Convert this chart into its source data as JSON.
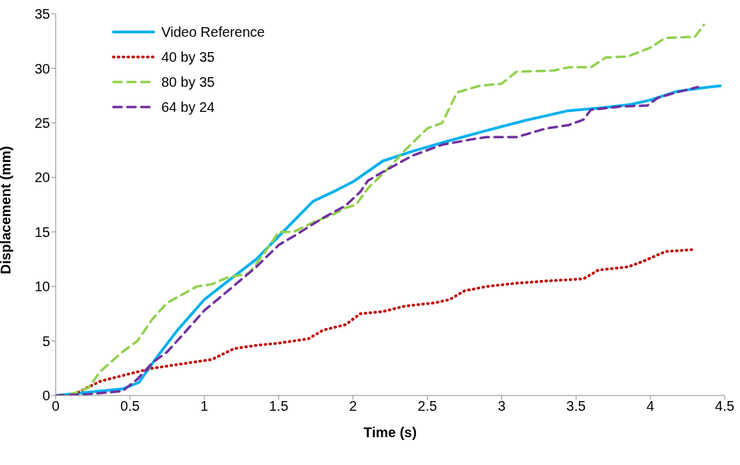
{
  "chart_data": {
    "type": "line",
    "xlabel": "Time (s)",
    "ylabel": "Displacement (mm)",
    "xlim": [
      0,
      4.5
    ],
    "xticks": [
      0,
      0.5,
      1,
      1.5,
      2,
      2.5,
      3,
      3.5,
      4,
      4.5
    ],
    "ylim": [
      0,
      35
    ],
    "yticks": [
      0,
      5,
      10,
      15,
      20,
      25,
      30,
      35
    ],
    "grid": false,
    "legend": "top left",
    "marker": "none",
    "series": [
      {
        "name": "Video Reference",
        "color": "#00b0f0",
        "line_style": "solid",
        "x": [
          0,
          0.15,
          0.45,
          0.56,
          0.68,
          0.82,
          1.0,
          1.15,
          1.35,
          1.55,
          1.73,
          1.87,
          2.0,
          2.2,
          2.4,
          2.63,
          2.87,
          3.15,
          3.44,
          3.68,
          3.87,
          4.0,
          4.18,
          4.34,
          4.47
        ],
        "values": [
          0,
          0.2,
          0.6,
          1.2,
          3.5,
          6,
          8.8,
          10.4,
          12.5,
          15.3,
          17.8,
          18.7,
          19.6,
          21.5,
          22.4,
          23.3,
          24.2,
          25.2,
          26.1,
          26.4,
          26.7,
          27.1,
          27.9,
          28.2,
          28.4
        ]
      },
      {
        "name": "40 by 35",
        "color": "#c00000",
        "line_style": "dotted",
        "x": [
          0.15,
          0.3,
          0.5,
          0.65,
          0.9,
          1.05,
          1.2,
          1.35,
          1.5,
          1.7,
          1.8,
          1.95,
          2.05,
          2.2,
          2.35,
          2.55,
          2.65,
          2.75,
          2.9,
          3.1,
          3.3,
          3.55,
          3.65,
          3.85,
          3.95,
          4.1,
          4.3
        ],
        "values": [
          0.3,
          1.3,
          2.0,
          2.5,
          3.0,
          3.3,
          4.3,
          4.6,
          4.8,
          5.2,
          6.0,
          6.5,
          7.5,
          7.7,
          8.2,
          8.5,
          8.8,
          9.6,
          10.0,
          10.3,
          10.5,
          10.7,
          11.5,
          11.8,
          12.3,
          13.2,
          13.4
        ]
      },
      {
        "name": "80 by 35",
        "color": "#92d050",
        "line_style": "dashed",
        "x": [
          0,
          0.1,
          0.22,
          0.3,
          0.45,
          0.55,
          0.65,
          0.75,
          0.95,
          1.05,
          1.15,
          1.3,
          1.4,
          1.5,
          1.6,
          1.75,
          1.85,
          1.95,
          2.02,
          2.1,
          2.25,
          2.35,
          2.5,
          2.6,
          2.7,
          2.85,
          3.0,
          3.1,
          3.35,
          3.45,
          3.6,
          3.7,
          3.85,
          4.0,
          4.1,
          4.3,
          4.36
        ],
        "values": [
          0,
          0.1,
          0.7,
          2.2,
          4,
          5,
          7,
          8.5,
          10,
          10.2,
          10.8,
          11.2,
          13,
          15,
          15,
          16,
          16.5,
          17.2,
          17.5,
          19,
          21,
          22.5,
          24.5,
          25,
          27.8,
          28.4,
          28.6,
          29.7,
          29.8,
          30.1,
          30.1,
          31,
          31.1,
          31.9,
          32.8,
          32.9,
          34
        ]
      },
      {
        "name": "64 by 24",
        "color": "#7030a0",
        "line_style": "dashed",
        "x": [
          0,
          0.2,
          0.45,
          0.55,
          0.65,
          0.75,
          0.85,
          1.0,
          1.15,
          1.35,
          1.5,
          1.6,
          1.8,
          1.95,
          2.05,
          2.1,
          2.2,
          2.4,
          2.6,
          2.8,
          2.9,
          3.1,
          3.3,
          3.45,
          3.55,
          3.6,
          3.8,
          3.98,
          4.05,
          4.15,
          4.32
        ],
        "values": [
          0,
          0.1,
          0.4,
          1.5,
          3,
          4,
          5.5,
          7.8,
          9.5,
          11.8,
          13.8,
          14.6,
          16.3,
          17.4,
          18.7,
          19.7,
          20.5,
          22,
          23,
          23.5,
          23.7,
          23.7,
          24.5,
          24.8,
          25.3,
          26.2,
          26.5,
          26.6,
          27.3,
          27.7,
          28.3
        ]
      }
    ]
  }
}
